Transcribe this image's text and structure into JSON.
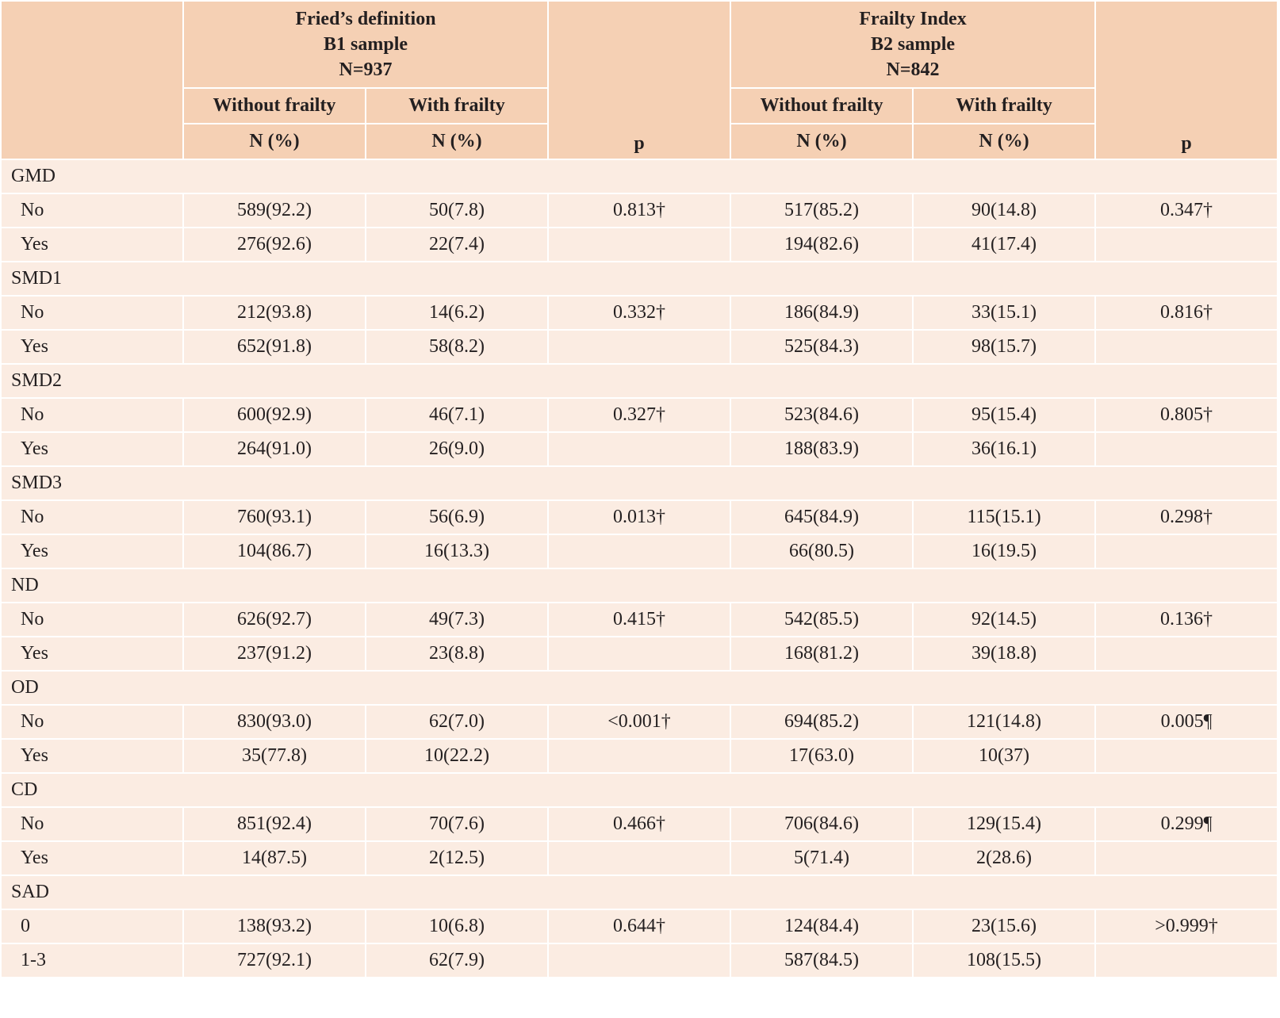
{
  "header": {
    "fried": {
      "line1": "Fried’s definition",
      "line2": "B1 sample",
      "line3": "N=937"
    },
    "frailty_index": {
      "line1": "Frailty Index",
      "line2": "B2 sample",
      "line3": "N=842"
    },
    "without_frailty": "Without frailty",
    "with_frailty": "With frailty",
    "n_pct": "N (%)",
    "p": "p"
  },
  "groups": [
    {
      "name": "GMD",
      "rows": [
        {
          "label": "No",
          "f_without": "589(92.2)",
          "f_with": "50(7.8)",
          "f_p": "0.813†",
          "fi_without": "517(85.2)",
          "fi_with": "90(14.8)",
          "fi_p": "0.347†"
        },
        {
          "label": "Yes",
          "f_without": "276(92.6)",
          "f_with": "22(7.4)",
          "f_p": "",
          "fi_without": "194(82.6)",
          "fi_with": "41(17.4)",
          "fi_p": ""
        }
      ]
    },
    {
      "name": "SMD1",
      "rows": [
        {
          "label": "No",
          "f_without": "212(93.8)",
          "f_with": "14(6.2)",
          "f_p": "0.332†",
          "fi_without": "186(84.9)",
          "fi_with": "33(15.1)",
          "fi_p": "0.816†"
        },
        {
          "label": "Yes",
          "f_without": "652(91.8)",
          "f_with": "58(8.2)",
          "f_p": "",
          "fi_without": "525(84.3)",
          "fi_with": "98(15.7)",
          "fi_p": ""
        }
      ]
    },
    {
      "name": "SMD2",
      "rows": [
        {
          "label": "No",
          "f_without": "600(92.9)",
          "f_with": "46(7.1)",
          "f_p": "0.327†",
          "fi_without": "523(84.6)",
          "fi_with": "95(15.4)",
          "fi_p": "0.805†"
        },
        {
          "label": "Yes",
          "f_without": "264(91.0)",
          "f_with": "26(9.0)",
          "f_p": "",
          "fi_without": "188(83.9)",
          "fi_with": "36(16.1)",
          "fi_p": ""
        }
      ]
    },
    {
      "name": "SMD3",
      "rows": [
        {
          "label": "No",
          "f_without": "760(93.1)",
          "f_with": "56(6.9)",
          "f_p": "0.013†",
          "fi_without": "645(84.9)",
          "fi_with": "115(15.1)",
          "fi_p": "0.298†"
        },
        {
          "label": "Yes",
          "f_without": "104(86.7)",
          "f_with": "16(13.3)",
          "f_p": "",
          "fi_without": "66(80.5)",
          "fi_with": "16(19.5)",
          "fi_p": ""
        }
      ]
    },
    {
      "name": "ND",
      "rows": [
        {
          "label": "No",
          "f_without": "626(92.7)",
          "f_with": "49(7.3)",
          "f_p": "0.415†",
          "fi_without": "542(85.5)",
          "fi_with": "92(14.5)",
          "fi_p": "0.136†"
        },
        {
          "label": "Yes",
          "f_without": "237(91.2)",
          "f_with": "23(8.8)",
          "f_p": "",
          "fi_without": "168(81.2)",
          "fi_with": "39(18.8)",
          "fi_p": ""
        }
      ]
    },
    {
      "name": "OD",
      "rows": [
        {
          "label": "No",
          "f_without": "830(93.0)",
          "f_with": "62(7.0)",
          "f_p": "<0.001†",
          "fi_without": "694(85.2)",
          "fi_with": "121(14.8)",
          "fi_p": "0.005¶"
        },
        {
          "label": "Yes",
          "f_without": "35(77.8)",
          "f_with": "10(22.2)",
          "f_p": "",
          "fi_without": "17(63.0)",
          "fi_with": "10(37)",
          "fi_p": ""
        }
      ]
    },
    {
      "name": "CD",
      "rows": [
        {
          "label": "No",
          "f_without": "851(92.4)",
          "f_with": "70(7.6)",
          "f_p": "0.466†",
          "fi_without": "706(84.6)",
          "fi_with": "129(15.4)",
          "fi_p": "0.299¶"
        },
        {
          "label": "Yes",
          "f_without": "14(87.5)",
          "f_with": "2(12.5)",
          "f_p": "",
          "fi_without": "5(71.4)",
          "fi_with": "2(28.6)",
          "fi_p": ""
        }
      ]
    },
    {
      "name": "SAD",
      "rows": [
        {
          "label": "0",
          "f_without": "138(93.2)",
          "f_with": "10(6.8)",
          "f_p": "0.644†",
          "fi_without": "124(84.4)",
          "fi_with": "23(15.6)",
          "fi_p": ">0.999†"
        },
        {
          "label": "1-3",
          "f_without": "727(92.1)",
          "f_with": "62(7.9)",
          "f_p": "",
          "fi_without": "587(84.5)",
          "fi_with": "108(15.5)",
          "fi_p": ""
        }
      ]
    }
  ]
}
